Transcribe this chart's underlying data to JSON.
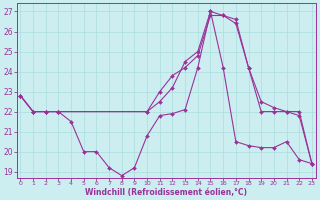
{
  "xlabel": "Windchill (Refroidissement éolien,°C)",
  "xlim_min": -0.3,
  "xlim_max": 23.3,
  "ylim_min": 18.7,
  "ylim_max": 27.4,
  "yticks": [
    19,
    20,
    21,
    22,
    23,
    24,
    25,
    26,
    27
  ],
  "xticks": [
    0,
    1,
    2,
    3,
    4,
    5,
    6,
    7,
    8,
    9,
    10,
    11,
    12,
    13,
    14,
    15,
    16,
    17,
    18,
    19,
    20,
    21,
    22,
    23
  ],
  "bg_color": "#cceef0",
  "line_color": "#993399",
  "grid_color": "#aadddd",
  "line1_x": [
    0,
    1,
    2,
    3,
    10,
    11,
    12,
    13,
    14,
    15,
    16,
    17,
    18,
    19,
    20,
    21,
    22,
    23
  ],
  "line1_y": [
    22.8,
    22.0,
    22.0,
    22.0,
    22.0,
    22.5,
    23.2,
    24.5,
    25.0,
    27.0,
    26.8,
    26.6,
    24.2,
    22.0,
    22.0,
    22.0,
    22.0,
    19.4
  ],
  "line2_x": [
    0,
    1,
    2,
    3,
    10,
    11,
    12,
    13,
    14,
    15,
    16,
    17,
    18,
    19,
    20,
    21,
    22,
    23
  ],
  "line2_y": [
    22.8,
    22.0,
    22.0,
    22.0,
    22.0,
    23.0,
    23.8,
    24.2,
    24.8,
    26.8,
    26.8,
    26.4,
    24.2,
    22.5,
    22.2,
    22.0,
    21.8,
    19.4
  ],
  "line3_x": [
    0,
    1,
    2,
    3,
    4,
    5,
    6,
    7,
    8,
    9,
    10,
    11,
    12,
    13,
    14,
    15,
    16,
    17,
    18,
    19,
    20,
    21,
    22,
    23
  ],
  "line3_y": [
    22.8,
    22.0,
    22.0,
    22.0,
    21.5,
    20.0,
    20.0,
    19.2,
    18.8,
    19.2,
    20.8,
    21.8,
    21.9,
    22.1,
    24.2,
    27.0,
    24.2,
    20.5,
    20.3,
    20.2,
    20.2,
    20.5,
    19.6,
    19.4
  ]
}
